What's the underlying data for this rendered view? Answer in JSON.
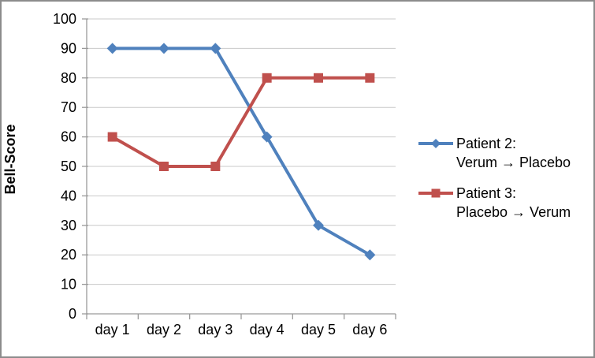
{
  "chart_data": {
    "type": "line",
    "title": "",
    "xlabel": "",
    "ylabel": "Bell-Score",
    "categories": [
      "day 1",
      "day 2",
      "day 3",
      "day 4",
      "day 5",
      "day 6"
    ],
    "yticks": [
      0,
      10,
      20,
      30,
      40,
      50,
      60,
      70,
      80,
      90,
      100
    ],
    "ylim": [
      0,
      100
    ],
    "grid": "horizontal",
    "legend_position": "right",
    "series": [
      {
        "name": "Patient 2: Verum → Placebo",
        "legend_line1": "Patient 2:",
        "legend_line2": "Verum → Placebo",
        "color": "#4F81BD",
        "marker": "diamond",
        "values": [
          90,
          90,
          90,
          60,
          30,
          20
        ]
      },
      {
        "name": "Patient 3: Placebo → Verum",
        "legend_line1": "Patient 3:",
        "legend_line2": "Placebo → Verum",
        "color": "#C0504D",
        "marker": "square",
        "values": [
          60,
          50,
          50,
          80,
          80,
          80
        ]
      }
    ],
    "colors": {
      "gridline": "#C9C9C9",
      "axis": "#9A9A9A",
      "text": "#000000"
    }
  }
}
